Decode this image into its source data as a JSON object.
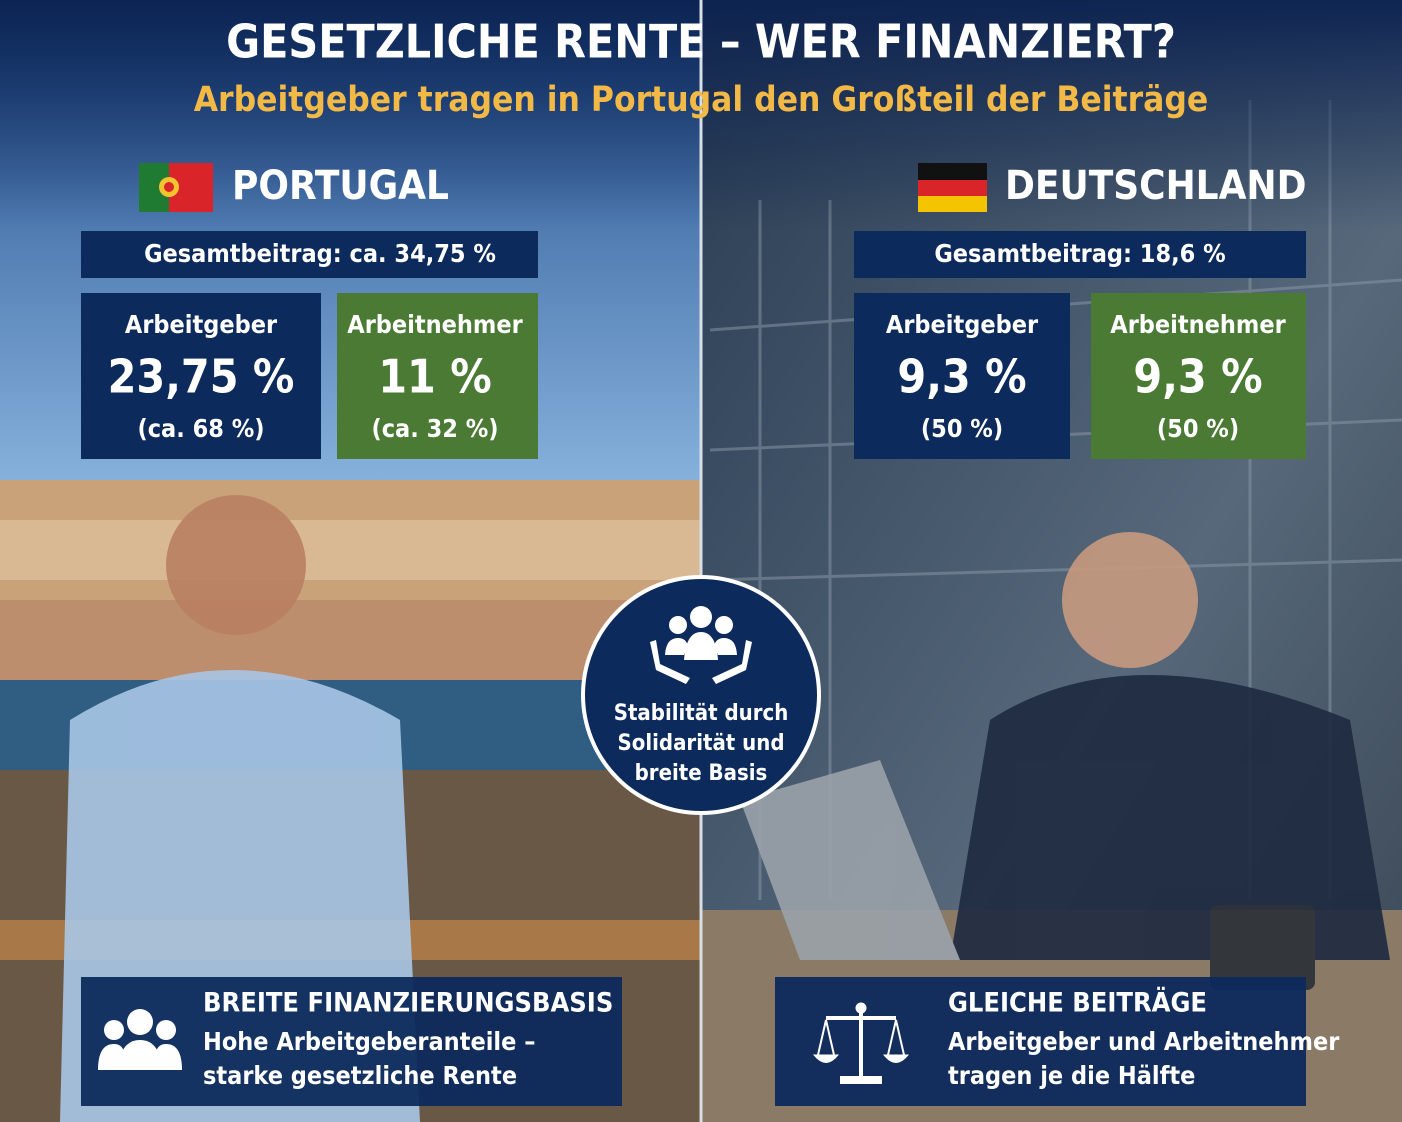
{
  "header": {
    "title": "GESETZLICHE RENTE – WER FINANZIERT?",
    "subtitle": "Arbeitgeber tragen in Portugal den Großteil der Beiträge"
  },
  "panels": [
    {
      "country": "PORTUGAL",
      "total": "Gesamtbeitrag: ca. 34,75 %",
      "employer": {
        "label": "Arbeitgeber",
        "value": "23,75 %",
        "share": "(ca. 68 %)"
      },
      "employee": {
        "label": "Arbeitnehmer",
        "value": "11 %",
        "share": "(ca. 32 %)"
      },
      "footer": {
        "title": "BREITE FINANZIERUNGSBASIS",
        "lines": [
          "Hohe Arbeitgeberanteile –",
          "starke gesetzliche Rente"
        ]
      }
    },
    {
      "country": "DEUTSCHLAND",
      "total": "Gesamtbeitrag: 18,6 %",
      "employer": {
        "label": "Arbeitgeber",
        "value": "9,3 %",
        "share": "(50 %)"
      },
      "employee": {
        "label": "Arbeitnehmer",
        "value": "9,3 %",
        "share": "(50 %)"
      },
      "footer": {
        "title": "GLEICHE BEITRÄGE",
        "lines": [
          "Arbeitgeber und Arbeitnehmer",
          "tragen je die Hälfte"
        ]
      }
    }
  ],
  "center": {
    "lines": [
      "Stabilität durch",
      "Solidarität und",
      "breite Basis"
    ]
  }
}
